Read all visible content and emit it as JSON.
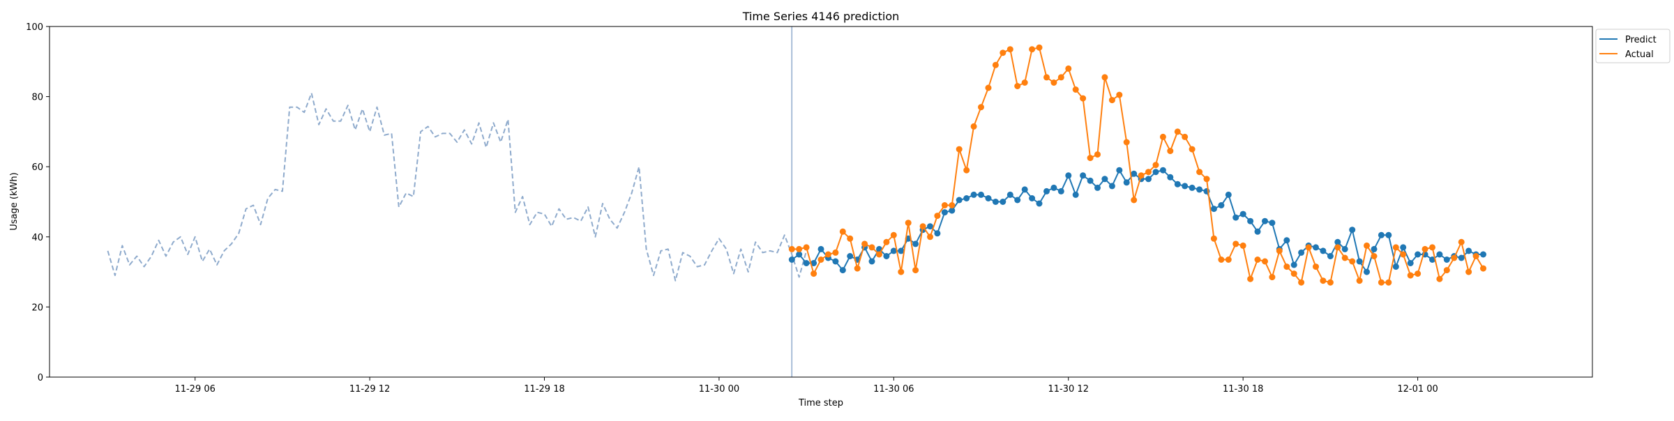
{
  "chart_data": {
    "type": "line",
    "title": "Time Series 4146 prediction",
    "xlabel": "Time step",
    "ylabel": "Usage (kWh)",
    "ylim": [
      0,
      100
    ],
    "yticks": [
      0,
      20,
      40,
      60,
      80,
      100
    ],
    "xlim": [
      "2023-11-29 01:00",
      "2023-12-01 06:00"
    ],
    "xticks": [
      {
        "value": "2023-11-29 06:00",
        "label": "11-29 06"
      },
      {
        "value": "2023-11-29 12:00",
        "label": "11-29 12"
      },
      {
        "value": "2023-11-29 18:00",
        "label": "11-29 18"
      },
      {
        "value": "2023-11-30 00:00",
        "label": "11-30 00"
      },
      {
        "value": "2023-11-30 06:00",
        "label": "11-30 06"
      },
      {
        "value": "2023-11-30 12:00",
        "label": "11-30 12"
      },
      {
        "value": "2023-11-30 18:00",
        "label": "11-30 18"
      },
      {
        "value": "2023-12-01 00:00",
        "label": "12-01 00"
      }
    ],
    "interval_minutes": 15,
    "marker_line_x": "2023-11-30 02:30",
    "legend": {
      "position": "top-right",
      "entries": [
        "Predict",
        "Actual"
      ]
    },
    "colors": {
      "history": "#8eaacc",
      "predict": "#1f77b4",
      "actual": "#ff7f0e",
      "divider": "#8eaacc",
      "axes": "#000000"
    },
    "series": [
      {
        "name": "History",
        "style": "dashed",
        "start": "2023-11-29 03:00",
        "values": [
          36,
          29,
          37.5,
          32,
          34.5,
          31.5,
          34.5,
          39,
          34.5,
          38.5,
          40,
          35,
          40,
          33,
          36.5,
          32,
          36,
          38,
          41,
          48,
          49,
          43.5,
          51,
          53.5,
          53,
          77,
          77,
          75.5,
          81,
          72,
          76.5,
          73,
          73,
          77.5,
          70.5,
          76.5,
          70,
          77,
          69,
          69.5,
          48.5,
          52.5,
          51.5,
          70,
          71.5,
          68.5,
          69.5,
          69.5,
          67,
          70.5,
          66.5,
          72.5,
          65.5,
          72.5,
          67,
          73.5,
          47,
          51.5,
          43.5,
          47,
          46.5,
          43,
          48,
          45,
          45.5,
          44.5,
          48.5,
          40,
          49.5,
          45,
          42.5,
          47,
          52.5,
          60,
          36.5,
          29,
          36,
          36.5,
          27.5,
          35.5,
          34.5,
          31.5,
          32,
          36,
          39.5,
          36.5,
          29.5,
          36.5,
          30,
          38.5,
          35.5,
          36,
          35.5,
          40.5,
          35,
          28.5,
          36
        ]
      },
      {
        "name": "Predict",
        "style": "line-marker",
        "start": "2023-11-30 02:30",
        "values": [
          33.5,
          35,
          32.5,
          32.5,
          36.5,
          34,
          33,
          30.5,
          34.5,
          33.5,
          37,
          33,
          36.5,
          34.5,
          36,
          36,
          39.5,
          38,
          42,
          43,
          41,
          47,
          47.5,
          50.5,
          51,
          52,
          52,
          51,
          50,
          50,
          52,
          50.5,
          53.5,
          51,
          49.5,
          53,
          54,
          53,
          57.5,
          52,
          57.5,
          56,
          54,
          56.5,
          54.5,
          59,
          55.5,
          58,
          56.5,
          56.5,
          58.5,
          59,
          57,
          55,
          54.5,
          54,
          53.5,
          53,
          48,
          49,
          52,
          45.5,
          46.5,
          44.5,
          41.5,
          44.5,
          44,
          36.5,
          39,
          32,
          35.5,
          37.5,
          37,
          36,
          34.5,
          38.5,
          36.5,
          42,
          33,
          30,
          36.5,
          40.5,
          40.5,
          31.5,
          37,
          32.5,
          35,
          35,
          33.5,
          35,
          33.5,
          34.5,
          34,
          36,
          35,
          35
        ]
      },
      {
        "name": "Actual",
        "style": "line-marker",
        "start": "2023-11-30 02:30",
        "values": [
          36.5,
          36.5,
          37,
          29.5,
          33.5,
          35,
          35.5,
          41.5,
          39.5,
          31,
          38,
          37,
          35,
          38.5,
          40.5,
          30,
          44,
          30.5,
          43,
          40,
          46,
          49,
          49,
          65,
          59,
          71.5,
          77,
          82.5,
          89,
          92.5,
          93.5,
          83,
          84,
          93.5,
          94,
          85.5,
          84,
          85.5,
          88,
          82,
          79.5,
          62.5,
          63.5,
          85.5,
          79,
          80.5,
          67,
          50.5,
          57.5,
          58.5,
          60.5,
          68.5,
          64.5,
          70,
          68.5,
          65,
          58.5,
          56.5,
          39.5,
          33.5,
          33.5,
          38,
          37.5,
          28,
          33.5,
          33,
          28.5,
          36,
          31.5,
          29.5,
          27,
          37,
          31.5,
          27.5,
          27,
          37,
          34,
          33,
          27.5,
          37.5,
          34.5,
          27,
          27,
          37,
          35,
          29,
          29.5,
          36.5,
          37,
          28,
          30.5,
          34,
          38.5,
          30,
          34.5,
          31
        ]
      }
    ]
  }
}
